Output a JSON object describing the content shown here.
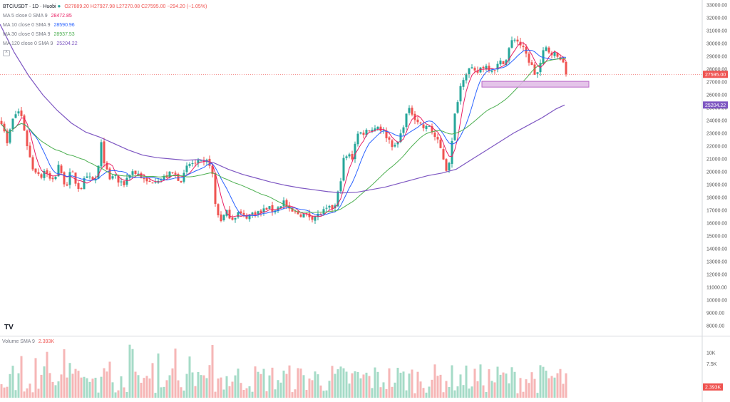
{
  "header": {
    "symbol": "BTC/USDT · 1D · Huobi",
    "ohlc": "O27889.20 H27927.98 L27270.08 C27595.00 −294.20 (−1.05%)",
    "status_color": "#26a69a"
  },
  "legend": [
    {
      "label": "MA 5 close 0 SMA 9",
      "value": "28472.85",
      "color": "#e91e63"
    },
    {
      "label": "MA 10 close 0 SMA 9",
      "value": "28590.96",
      "color": "#2962ff"
    },
    {
      "label": "MA 30 close 0 SMA 9",
      "value": "28937.53",
      "color": "#4caf50"
    },
    {
      "label": "MA 120 close 0 SMA 9",
      "value": "25204.22",
      "color": "#7e57c2"
    }
  ],
  "collapse_icon": "chevron-up-icon",
  "logo": "TV",
  "volume_legend": {
    "label": "Volume SMA 9",
    "value": "2.393K"
  },
  "price_axis": {
    "ticks": [
      "33000.00",
      "32000.00",
      "31000.00",
      "30000.00",
      "29000.00",
      "28000.00",
      "27000.00",
      "26000.00",
      "25000.00",
      "24000.00",
      "23000.00",
      "22000.00",
      "21000.00",
      "20000.00",
      "19000.00",
      "18000.00",
      "17000.00",
      "16000.00",
      "15000.00",
      "14000.00",
      "13000.00",
      "12000.00",
      "11000.00",
      "10000.00",
      "9000.00",
      "8000.00"
    ],
    "last_price_label": "27595.00",
    "ma120_label": "25204.22"
  },
  "volume_axis": {
    "ticks": [
      "10K",
      "7.5K"
    ],
    "last_label": "2.393K"
  },
  "chart_data": {
    "type": "candlestick",
    "pair": "BTC/USDT",
    "interval": "1D",
    "ylim": [
      7500,
      33200
    ],
    "last_close": 27595.0,
    "zone": {
      "from": 26600,
      "to": 27050,
      "color": "#e1bee7"
    },
    "price_anchors": [
      [
        0,
        24200
      ],
      [
        5,
        23600
      ],
      [
        10,
        22100
      ],
      [
        16,
        23800
      ],
      [
        22,
        24500
      ],
      [
        28,
        24800
      ],
      [
        34,
        23300
      ],
      [
        40,
        21500
      ],
      [
        46,
        20300
      ],
      [
        52,
        20000
      ],
      [
        58,
        19700
      ],
      [
        64,
        20300
      ],
      [
        70,
        19400
      ],
      [
        76,
        19300
      ],
      [
        82,
        20600
      ],
      [
        88,
        19300
      ],
      [
        94,
        19100
      ],
      [
        100,
        20100
      ],
      [
        106,
        19200
      ],
      [
        112,
        18600
      ],
      [
        118,
        19300
      ],
      [
        124,
        19500
      ],
      [
        130,
        19300
      ],
      [
        136,
        19500
      ],
      [
        142,
        22100
      ],
      [
        148,
        20300
      ],
      [
        154,
        19300
      ],
      [
        160,
        19900
      ],
      [
        166,
        19200
      ],
      [
        172,
        18900
      ],
      [
        178,
        19500
      ],
      [
        184,
        20100
      ],
      [
        190,
        19900
      ],
      [
        196,
        19800
      ],
      [
        202,
        19300
      ],
      [
        208,
        19100
      ],
      [
        214,
        19300
      ],
      [
        220,
        19500
      ],
      [
        226,
        19400
      ],
      [
        232,
        19600
      ],
      [
        238,
        19800
      ],
      [
        244,
        19900
      ],
      [
        250,
        19500
      ],
      [
        256,
        19400
      ],
      [
        262,
        20300
      ],
      [
        268,
        20700
      ],
      [
        274,
        20600
      ],
      [
        280,
        20700
      ],
      [
        286,
        20600
      ],
      [
        292,
        20900
      ],
      [
        297,
        20300
      ],
      [
        303,
        16900
      ],
      [
        310,
        16300
      ],
      [
        318,
        16800
      ],
      [
        326,
        16400
      ],
      [
        334,
        16800
      ],
      [
        342,
        16500
      ],
      [
        350,
        16600
      ],
      [
        358,
        16900
      ],
      [
        366,
        16800
      ],
      [
        374,
        17200
      ],
      [
        382,
        17000
      ],
      [
        390,
        17200
      ],
      [
        398,
        17700
      ],
      [
        406,
        16900
      ],
      [
        414,
        16800
      ],
      [
        422,
        16700
      ],
      [
        430,
        16600
      ],
      [
        438,
        16500
      ],
      [
        446,
        16600
      ],
      [
        454,
        16900
      ],
      [
        462,
        17100
      ],
      [
        470,
        17300
      ],
      [
        476,
        18800
      ],
      [
        482,
        20900
      ],
      [
        488,
        21300
      ],
      [
        494,
        21100
      ],
      [
        500,
        22900
      ],
      [
        506,
        23000
      ],
      [
        512,
        23100
      ],
      [
        518,
        23400
      ],
      [
        524,
        23300
      ],
      [
        530,
        23600
      ],
      [
        536,
        23200
      ],
      [
        542,
        22800
      ],
      [
        548,
        22300
      ],
      [
        554,
        21900
      ],
      [
        560,
        22500
      ],
      [
        566,
        23700
      ],
      [
        572,
        24800
      ],
      [
        578,
        24600
      ],
      [
        584,
        24100
      ],
      [
        590,
        23700
      ],
      [
        596,
        23300
      ],
      [
        602,
        23600
      ],
      [
        608,
        22900
      ],
      [
        614,
        22300
      ],
      [
        620,
        21500
      ],
      [
        626,
        20200
      ],
      [
        632,
        21200
      ],
      [
        638,
        24400
      ],
      [
        644,
        26300
      ],
      [
        650,
        27400
      ],
      [
        656,
        28000
      ],
      [
        662,
        27900
      ],
      [
        668,
        27600
      ],
      [
        674,
        28100
      ],
      [
        680,
        28300
      ],
      [
        686,
        28100
      ],
      [
        692,
        28000
      ],
      [
        698,
        28300
      ],
      [
        704,
        28600
      ],
      [
        710,
        28700
      ],
      [
        716,
        30000
      ],
      [
        722,
        30400
      ],
      [
        728,
        30100
      ],
      [
        734,
        29500
      ],
      [
        740,
        28900
      ],
      [
        746,
        28200
      ],
      [
        752,
        27400
      ],
      [
        758,
        28400
      ],
      [
        764,
        29700
      ],
      [
        770,
        29400
      ],
      [
        776,
        29300
      ],
      [
        782,
        28900
      ],
      [
        788,
        29000
      ],
      [
        792,
        27595
      ]
    ],
    "series": [
      {
        "name": "MA 5 close 0 SMA 9",
        "period": 5,
        "last": 28472.85,
        "color": "#e91e63"
      },
      {
        "name": "MA 10 close 0 SMA 9",
        "period": 10,
        "last": 28590.96,
        "color": "#2962ff"
      },
      {
        "name": "MA 30 close 0 SMA 9",
        "period": 30,
        "last": 28937.53,
        "color": "#4caf50"
      },
      {
        "name": "MA 120 close 0 SMA 9",
        "period": 120,
        "last": 25204.22,
        "color": "#7e57c2"
      }
    ],
    "ma120_anchors": [
      [
        0,
        31500
      ],
      [
        20,
        29300
      ],
      [
        40,
        27500
      ],
      [
        60,
        26000
      ],
      [
        80,
        24800
      ],
      [
        100,
        23800
      ],
      [
        120,
        23100
      ],
      [
        140,
        22700
      ],
      [
        160,
        22200
      ],
      [
        180,
        21700
      ],
      [
        200,
        21300
      ],
      [
        220,
        21100
      ],
      [
        240,
        21000
      ],
      [
        260,
        20900
      ],
      [
        280,
        20950
      ],
      [
        300,
        20700
      ],
      [
        320,
        20200
      ],
      [
        340,
        19800
      ],
      [
        360,
        19500
      ],
      [
        380,
        19200
      ],
      [
        400,
        18950
      ],
      [
        420,
        18750
      ],
      [
        440,
        18600
      ],
      [
        460,
        18450
      ],
      [
        480,
        18350
      ],
      [
        500,
        18400
      ],
      [
        520,
        18600
      ],
      [
        540,
        18800
      ],
      [
        560,
        19100
      ],
      [
        580,
        19400
      ],
      [
        600,
        19700
      ],
      [
        620,
        19900
      ],
      [
        640,
        20200
      ],
      [
        660,
        20900
      ],
      [
        680,
        21600
      ],
      [
        700,
        22300
      ],
      [
        720,
        23000
      ],
      [
        740,
        23600
      ],
      [
        760,
        24200
      ],
      [
        780,
        24900
      ],
      [
        792,
        25204
      ]
    ],
    "volume": {
      "ylim": [
        0,
        13000
      ],
      "last": 2393,
      "base_color_up": "#a5dbc7",
      "base_color_down": "#f6b6b6"
    }
  }
}
